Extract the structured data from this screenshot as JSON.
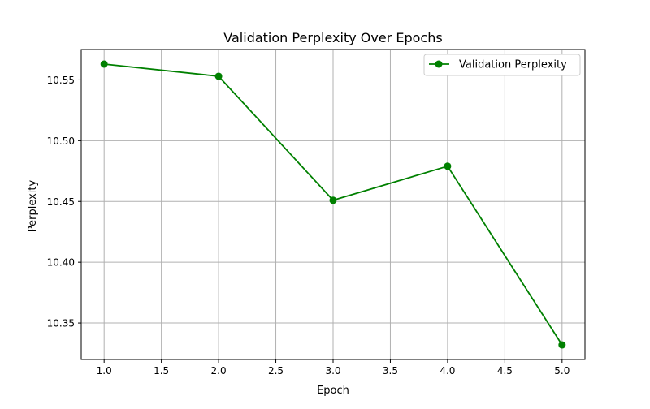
{
  "chart_data": {
    "type": "line",
    "title": "Validation Perplexity Over Epochs",
    "xlabel": "Epoch",
    "ylabel": "Perplexity",
    "xlim": [
      0.8,
      5.2
    ],
    "ylim": [
      10.32,
      10.575
    ],
    "x_ticks": [
      1.0,
      1.5,
      2.0,
      2.5,
      3.0,
      3.5,
      4.0,
      4.5,
      5.0
    ],
    "y_ticks": [
      10.35,
      10.4,
      10.45,
      10.5,
      10.55
    ],
    "x_tick_labels": [
      "1.0",
      "1.5",
      "2.0",
      "2.5",
      "3.0",
      "3.5",
      "4.0",
      "4.5",
      "5.0"
    ],
    "y_tick_labels": [
      "10.35",
      "10.40",
      "10.45",
      "10.50",
      "10.55"
    ],
    "grid": true,
    "legend_position": "top-right",
    "series": [
      {
        "name": "Validation Perplexity",
        "color": "#008000",
        "marker": "circle",
        "x": [
          1,
          2,
          3,
          4,
          5
        ],
        "y": [
          10.563,
          10.553,
          10.451,
          10.479,
          10.332
        ]
      }
    ]
  }
}
